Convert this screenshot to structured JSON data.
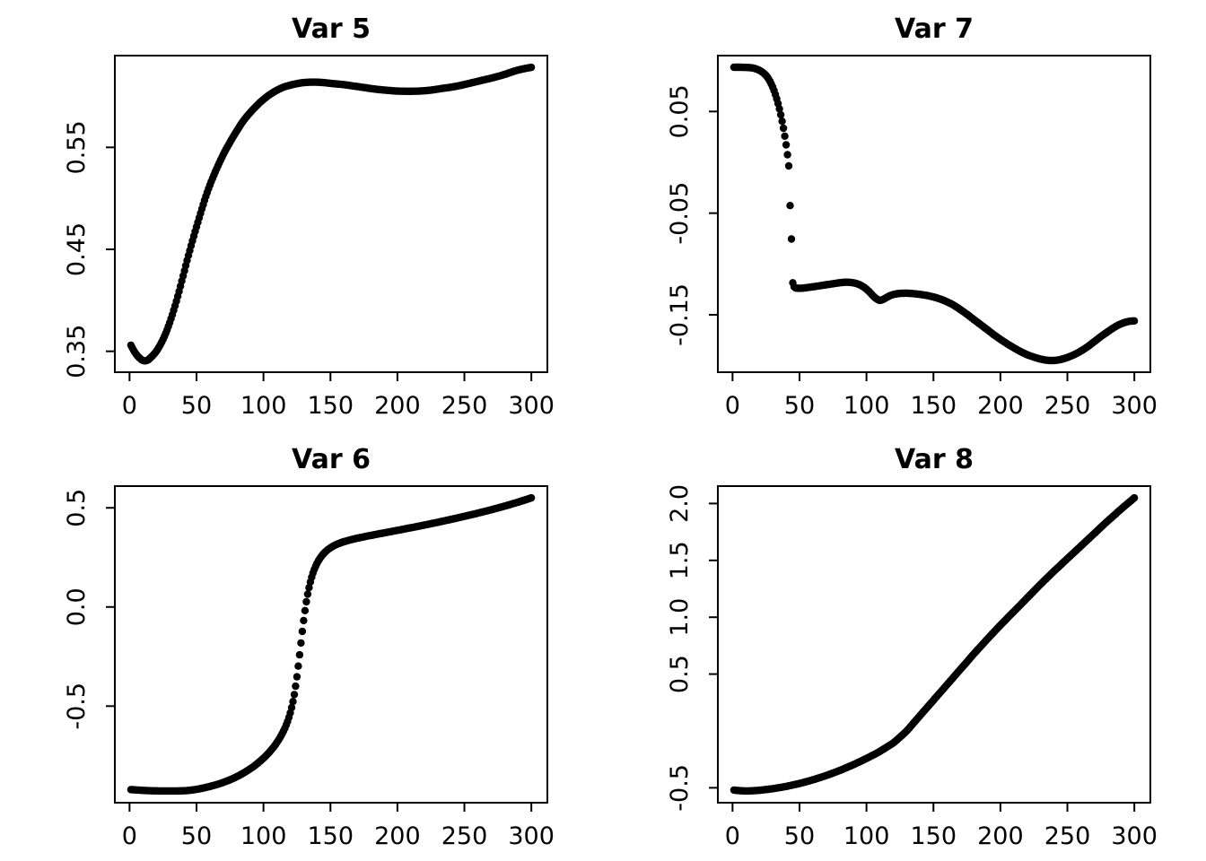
{
  "figure": {
    "background": "#ffffff",
    "layout": "2x2-grid",
    "point_color": "#000000"
  },
  "chart_data": [
    {
      "type": "scatter",
      "title": "Var 5",
      "position": "top-left",
      "point_color": "#000000",
      "xlabel": "",
      "ylabel": "",
      "xlim": [
        -10.96,
        311.96
      ],
      "ylim": [
        0.3295,
        0.64
      ],
      "x_start": 1,
      "x_end": 300,
      "x_step": 1,
      "x_axis": {
        "ticks": [
          {
            "value": 0,
            "label": "0"
          },
          {
            "value": 50,
            "label": "50"
          },
          {
            "value": 100,
            "label": "100"
          },
          {
            "value": 150,
            "label": "150"
          },
          {
            "value": 200,
            "label": "200"
          },
          {
            "value": 250,
            "label": "250"
          },
          {
            "value": 300,
            "label": "300"
          }
        ]
      },
      "y_axis": {
        "ticks": [
          {
            "value": 0.35,
            "label": "0.35"
          },
          {
            "value": 0.45,
            "label": "0.45"
          },
          {
            "value": 0.55,
            "label": "0.55"
          }
        ]
      },
      "points": [
        [
          1,
          0.356
        ],
        [
          4,
          0.349
        ],
        [
          7,
          0.344
        ],
        [
          10,
          0.341
        ],
        [
          13,
          0.341
        ],
        [
          16,
          0.344
        ],
        [
          20,
          0.35
        ],
        [
          24,
          0.359
        ],
        [
          28,
          0.371
        ],
        [
          32,
          0.386
        ],
        [
          36,
          0.404
        ],
        [
          40,
          0.424
        ],
        [
          44,
          0.444
        ],
        [
          48,
          0.463
        ],
        [
          52,
          0.481
        ],
        [
          56,
          0.498
        ],
        [
          60,
          0.513
        ],
        [
          65,
          0.529
        ],
        [
          70,
          0.543
        ],
        [
          75,
          0.555
        ],
        [
          80,
          0.566
        ],
        [
          85,
          0.576
        ],
        [
          90,
          0.584
        ],
        [
          95,
          0.591
        ],
        [
          100,
          0.597
        ],
        [
          105,
          0.602
        ],
        [
          110,
          0.606
        ],
        [
          115,
          0.609
        ],
        [
          120,
          0.611
        ],
        [
          125,
          0.6125
        ],
        [
          130,
          0.6135
        ],
        [
          137,
          0.614
        ],
        [
          145,
          0.6135
        ],
        [
          152,
          0.6125
        ],
        [
          160,
          0.6115
        ],
        [
          168,
          0.61
        ],
        [
          176,
          0.6085
        ],
        [
          184,
          0.607
        ],
        [
          192,
          0.606
        ],
        [
          200,
          0.6052
        ],
        [
          208,
          0.605
        ],
        [
          216,
          0.6052
        ],
        [
          224,
          0.606
        ],
        [
          232,
          0.6075
        ],
        [
          240,
          0.609
        ],
        [
          248,
          0.611
        ],
        [
          256,
          0.6135
        ],
        [
          264,
          0.616
        ],
        [
          272,
          0.6185
        ],
        [
          280,
          0.6215
        ],
        [
          288,
          0.625
        ],
        [
          294,
          0.627
        ],
        [
          300,
          0.6285
        ]
      ]
    },
    {
      "type": "scatter",
      "title": "Var 7",
      "position": "top-right",
      "point_color": "#000000",
      "xlabel": "",
      "ylabel": "",
      "xlim": [
        -10.96,
        311.96
      ],
      "ylim": [
        -0.2065,
        0.105
      ],
      "x_start": 1,
      "x_end": 300,
      "x_step": 1,
      "x_axis": {
        "ticks": [
          {
            "value": 0,
            "label": "0"
          },
          {
            "value": 50,
            "label": "50"
          },
          {
            "value": 100,
            "label": "100"
          },
          {
            "value": 150,
            "label": "150"
          },
          {
            "value": 200,
            "label": "200"
          },
          {
            "value": 250,
            "label": "250"
          },
          {
            "value": 300,
            "label": "300"
          }
        ]
      },
      "y_axis": {
        "ticks": [
          {
            "value": -0.15,
            "label": "-0.15"
          },
          {
            "value": -0.05,
            "label": "-0.05"
          },
          {
            "value": 0.05,
            "label": "0.05"
          }
        ]
      },
      "points": [
        [
          1,
          0.0935
        ],
        [
          6,
          0.0935
        ],
        [
          11,
          0.0933
        ],
        [
          15,
          0.0928
        ],
        [
          18,
          0.0917
        ],
        [
          21,
          0.0898
        ],
        [
          24,
          0.0868
        ],
        [
          26,
          0.0838
        ],
        [
          28,
          0.0795
        ],
        [
          30,
          0.074
        ],
        [
          32,
          0.0668
        ],
        [
          34,
          0.0578
        ],
        [
          36,
          0.0468
        ],
        [
          38,
          0.0335
        ],
        [
          39,
          0.0258
        ],
        [
          40,
          0.0172
        ],
        [
          41,
          0.0075
        ],
        [
          42,
          -0.0035
        ],
        [
          43,
          -0.0425
        ],
        [
          44,
          -0.0755
        ],
        [
          45,
          -0.1185
        ],
        [
          46,
          -0.1225
        ],
        [
          48,
          -0.1238
        ],
        [
          52,
          -0.1238
        ],
        [
          56,
          -0.1232
        ],
        [
          60,
          -0.1225
        ],
        [
          65,
          -0.1215
        ],
        [
          70,
          -0.1205
        ],
        [
          75,
          -0.1195
        ],
        [
          80,
          -0.1185
        ],
        [
          85,
          -0.118
        ],
        [
          90,
          -0.1185
        ],
        [
          94,
          -0.12
        ],
        [
          98,
          -0.1228
        ],
        [
          102,
          -0.1272
        ],
        [
          105,
          -0.1315
        ],
        [
          108,
          -0.1348
        ],
        [
          110,
          -0.1358
        ],
        [
          112,
          -0.1352
        ],
        [
          115,
          -0.133
        ],
        [
          118,
          -0.131
        ],
        [
          121,
          -0.1298
        ],
        [
          125,
          -0.129
        ],
        [
          130,
          -0.1288
        ],
        [
          135,
          -0.1292
        ],
        [
          140,
          -0.13
        ],
        [
          145,
          -0.131
        ],
        [
          150,
          -0.1325
        ],
        [
          155,
          -0.1345
        ],
        [
          160,
          -0.1372
        ],
        [
          165,
          -0.1405
        ],
        [
          170,
          -0.1448
        ],
        [
          175,
          -0.1495
        ],
        [
          180,
          -0.1545
        ],
        [
          185,
          -0.1595
        ],
        [
          190,
          -0.1645
        ],
        [
          195,
          -0.1695
        ],
        [
          200,
          -0.1742
        ],
        [
          205,
          -0.1785
        ],
        [
          210,
          -0.1825
        ],
        [
          215,
          -0.1862
        ],
        [
          220,
          -0.1893
        ],
        [
          225,
          -0.1917
        ],
        [
          230,
          -0.1936
        ],
        [
          235,
          -0.1948
        ],
        [
          240,
          -0.195
        ],
        [
          245,
          -0.194
        ],
        [
          250,
          -0.192
        ],
        [
          255,
          -0.1893
        ],
        [
          260,
          -0.1858
        ],
        [
          265,
          -0.1815
        ],
        [
          270,
          -0.1765
        ],
        [
          275,
          -0.1715
        ],
        [
          280,
          -0.1668
        ],
        [
          284,
          -0.1632
        ],
        [
          288,
          -0.1602
        ],
        [
          292,
          -0.158
        ],
        [
          296,
          -0.1565
        ],
        [
          300,
          -0.156
        ]
      ]
    },
    {
      "type": "scatter",
      "title": "Var 6",
      "position": "bottom-left",
      "point_color": "#000000",
      "xlabel": "",
      "ylabel": "",
      "xlim": [
        -10.96,
        311.96
      ],
      "ylim": [
        -0.9871,
        0.6096
      ],
      "x_start": 1,
      "x_end": 300,
      "x_step": 1,
      "x_axis": {
        "ticks": [
          {
            "value": 0,
            "label": "0"
          },
          {
            "value": 50,
            "label": "50"
          },
          {
            "value": 100,
            "label": "100"
          },
          {
            "value": 150,
            "label": "150"
          },
          {
            "value": 200,
            "label": "200"
          },
          {
            "value": 250,
            "label": "250"
          },
          {
            "value": 300,
            "label": "300"
          }
        ]
      },
      "y_axis": {
        "ticks": [
          {
            "value": -0.5,
            "label": "-0.5"
          },
          {
            "value": 0.0,
            "label": "0.0"
          },
          {
            "value": 0.5,
            "label": "0.5"
          }
        ]
      },
      "points": [
        [
          1,
          -0.921
        ],
        [
          6,
          -0.9235
        ],
        [
          12,
          -0.9258
        ],
        [
          18,
          -0.9272
        ],
        [
          24,
          -0.9278
        ],
        [
          30,
          -0.928
        ],
        [
          36,
          -0.9277
        ],
        [
          41,
          -0.9268
        ],
        [
          46,
          -0.9238
        ],
        [
          50,
          -0.9198
        ],
        [
          54,
          -0.9148
        ],
        [
          58,
          -0.9088
        ],
        [
          62,
          -0.9018
        ],
        [
          66,
          -0.8938
        ],
        [
          70,
          -0.8848
        ],
        [
          74,
          -0.8744
        ],
        [
          78,
          -0.8626
        ],
        [
          82,
          -0.8492
        ],
        [
          86,
          -0.834
        ],
        [
          90,
          -0.8168
        ],
        [
          94,
          -0.7972
        ],
        [
          98,
          -0.7748
        ],
        [
          101,
          -0.7562
        ],
        [
          104,
          -0.7352
        ],
        [
          107,
          -0.7112
        ],
        [
          109,
          -0.6934
        ],
        [
          111,
          -0.6736
        ],
        [
          113,
          -0.6512
        ],
        [
          115,
          -0.6253
        ],
        [
          117,
          -0.5945
        ],
        [
          119,
          -0.5565
        ],
        [
          121,
          -0.5075
        ],
        [
          123,
          -0.4415
        ],
        [
          125,
          -0.352
        ],
        [
          127,
          -0.241
        ],
        [
          129,
          -0.123
        ],
        [
          131,
          -0.018
        ],
        [
          133,
          0.0645
        ],
        [
          135,
          0.126
        ],
        [
          137,
          0.1716
        ],
        [
          139,
          0.206
        ],
        [
          141,
          0.2325
        ],
        [
          144,
          0.262
        ],
        [
          147,
          0.283
        ],
        [
          150,
          0.2985
        ],
        [
          154,
          0.3135
        ],
        [
          158,
          0.3245
        ],
        [
          162,
          0.333
        ],
        [
          166,
          0.3402
        ],
        [
          170,
          0.3466
        ],
        [
          176,
          0.3552
        ],
        [
          182,
          0.3632
        ],
        [
          190,
          0.3735
        ],
        [
          198,
          0.3838
        ],
        [
          206,
          0.3942
        ],
        [
          214,
          0.4048
        ],
        [
          222,
          0.4157
        ],
        [
          230,
          0.427
        ],
        [
          238,
          0.4387
        ],
        [
          246,
          0.4508
        ],
        [
          254,
          0.4633
        ],
        [
          262,
          0.4764
        ],
        [
          270,
          0.4902
        ],
        [
          278,
          0.5048
        ],
        [
          286,
          0.5203
        ],
        [
          293,
          0.5348
        ],
        [
          300,
          0.5505
        ]
      ]
    },
    {
      "type": "scatter",
      "title": "Var 8",
      "position": "bottom-right",
      "point_color": "#000000",
      "xlabel": "",
      "ylabel": "",
      "xlim": [
        -10.96,
        311.96
      ],
      "ylim": [
        -0.6311,
        2.1531
      ],
      "x_start": 1,
      "x_end": 300,
      "x_step": 1,
      "x_axis": {
        "ticks": [
          {
            "value": 0,
            "label": "0"
          },
          {
            "value": 50,
            "label": "50"
          },
          {
            "value": 100,
            "label": "100"
          },
          {
            "value": 150,
            "label": "150"
          },
          {
            "value": 200,
            "label": "200"
          },
          {
            "value": 250,
            "label": "250"
          },
          {
            "value": 300,
            "label": "300"
          }
        ]
      },
      "y_axis": {
        "ticks": [
          {
            "value": -0.5,
            "label": "-0.5"
          },
          {
            "value": 0.5,
            "label": "0.5"
          },
          {
            "value": 1.0,
            "label": "1.0"
          },
          {
            "value": 1.5,
            "label": "1.5"
          },
          {
            "value": 2.0,
            "label": "2.0"
          }
        ]
      },
      "points": [
        [
          1,
          -0.52
        ],
        [
          5,
          -0.525
        ],
        [
          10,
          -0.528
        ],
        [
          15,
          -0.526
        ],
        [
          20,
          -0.522
        ],
        [
          25,
          -0.5155
        ],
        [
          30,
          -0.508
        ],
        [
          35,
          -0.4985
        ],
        [
          40,
          -0.488
        ],
        [
          45,
          -0.4755
        ],
        [
          50,
          -0.462
        ],
        [
          55,
          -0.4465
        ],
        [
          60,
          -0.43
        ],
        [
          65,
          -0.4115
        ],
        [
          70,
          -0.392
        ],
        [
          75,
          -0.3705
        ],
        [
          80,
          -0.348
        ],
        [
          85,
          -0.3235
        ],
        [
          90,
          -0.298
        ],
        [
          95,
          -0.2705
        ],
        [
          100,
          -0.242
        ],
        [
          105,
          -0.212
        ],
        [
          110,
          -0.18
        ],
        [
          115,
          -0.1435
        ],
        [
          120,
          -0.105
        ],
        [
          125,
          -0.055
        ],
        [
          130,
          0.0
        ],
        [
          135,
          0.0675
        ],
        [
          140,
          0.135
        ],
        [
          145,
          0.2025
        ],
        [
          150,
          0.27
        ],
        [
          155,
          0.3375
        ],
        [
          160,
          0.405
        ],
        [
          165,
          0.4725
        ],
        [
          170,
          0.54
        ],
        [
          175,
          0.6075
        ],
        [
          180,
          0.675
        ],
        [
          185,
          0.74
        ],
        [
          190,
          0.805
        ],
        [
          195,
          0.8675
        ],
        [
          200,
          0.93
        ],
        [
          205,
          0.99
        ],
        [
          210,
          1.05
        ],
        [
          215,
          1.11
        ],
        [
          220,
          1.17
        ],
        [
          225,
          1.23
        ],
        [
          230,
          1.29
        ],
        [
          235,
          1.3475
        ],
        [
          240,
          1.405
        ],
        [
          245,
          1.46
        ],
        [
          250,
          1.515
        ],
        [
          255,
          1.57
        ],
        [
          260,
          1.625
        ],
        [
          265,
          1.68
        ],
        [
          270,
          1.735
        ],
        [
          275,
          1.79
        ],
        [
          280,
          1.845
        ],
        [
          285,
          1.8975
        ],
        [
          290,
          1.95
        ],
        [
          295,
          2.0
        ],
        [
          300,
          2.05
        ]
      ]
    }
  ]
}
